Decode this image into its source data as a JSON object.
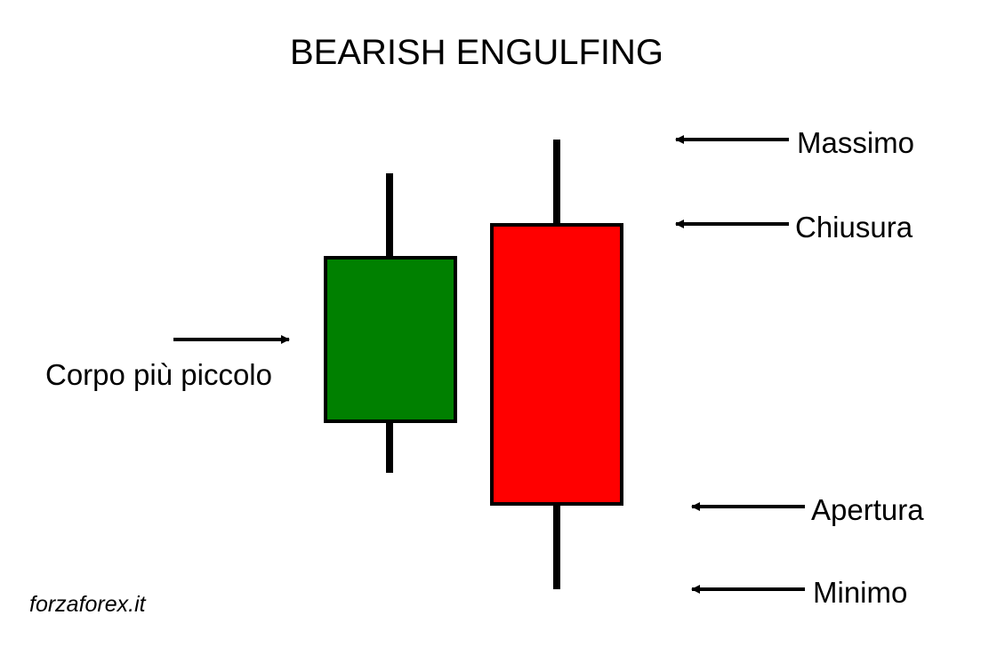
{
  "title": "BEARISH ENGULFING",
  "labels": {
    "high": "Massimo",
    "close": "Chiusura",
    "open": "Apertura",
    "low": "Minimo",
    "small_body": "Corpo più piccolo"
  },
  "watermark": "forzaforex.it",
  "colors": {
    "bullish_body": "#008000",
    "bearish_body": "#ff0000",
    "outline": "#000000",
    "background": "#ffffff"
  },
  "candles": [
    {
      "name": "small-bullish-candle",
      "direction": "up"
    },
    {
      "name": "large-bearish-candle",
      "direction": "down"
    }
  ]
}
